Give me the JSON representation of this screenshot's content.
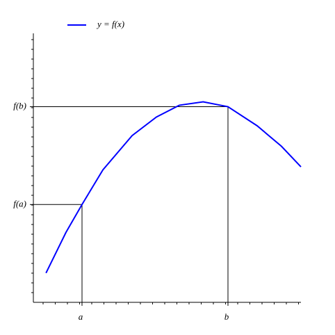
{
  "chart_data": {
    "type": "line",
    "x": [
      0.26,
      0.67,
      1,
      1.43,
      2.03,
      2.53,
      3,
      3.49,
      4,
      4.6,
      5.1,
      5.5
    ],
    "series": [
      {
        "name": "y = f(x)",
        "color": "#0000ff",
        "values": [
          0.6,
          1.43,
          2,
          2.71,
          3.41,
          3.79,
          4.03,
          4.1,
          4,
          3.61,
          3.19,
          2.77
        ]
      }
    ],
    "xlim": [
      0,
      5.5
    ],
    "ylim": [
      0,
      5.5
    ],
    "xticks": [
      {
        "value": 1,
        "label": "a"
      },
      {
        "value": 4,
        "label": "b"
      }
    ],
    "yticks": [
      {
        "value": 2,
        "label": "f(a)"
      },
      {
        "value": 4,
        "label": "f(b)"
      }
    ],
    "legend": "top-left"
  }
}
